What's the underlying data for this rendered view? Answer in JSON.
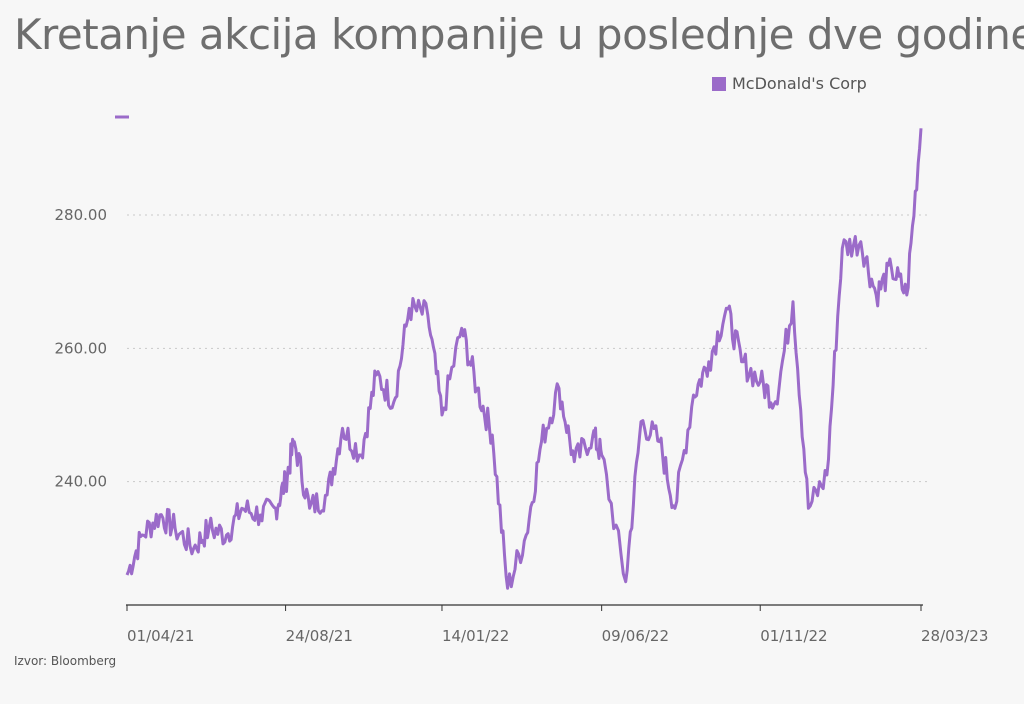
{
  "chart_data": {
    "type": "line",
    "title": "Kretanje akcija kompanije u poslednje dve godine",
    "source": "Izvor: Bloomberg",
    "series": [
      {
        "name": "McDonald's Corp",
        "color": "#9b6bc9",
        "x": [
          "01/04/21",
          "15/04/21",
          "01/05/21",
          "15/05/21",
          "01/06/21",
          "15/06/21",
          "01/07/21",
          "15/07/21",
          "01/08/21",
          "15/08/21",
          "24/08/21",
          "01/09/21",
          "15/09/21",
          "01/10/21",
          "15/10/21",
          "01/11/21",
          "15/11/21",
          "01/12/21",
          "15/12/21",
          "01/01/22",
          "14/01/22",
          "01/02/22",
          "15/02/22",
          "01/03/22",
          "15/03/22",
          "01/04/22",
          "15/04/22",
          "01/05/22",
          "15/05/22",
          "01/06/22",
          "09/06/22",
          "01/07/22",
          "15/07/22",
          "01/08/22",
          "15/08/22",
          "01/09/22",
          "15/09/22",
          "01/10/22",
          "15/10/22",
          "01/11/22",
          "15/11/22",
          "01/12/22",
          "15/12/22",
          "01/01/23",
          "15/01/23",
          "01/02/23",
          "15/02/23",
          "01/03/23",
          "15/03/23",
          "28/03/23"
        ],
        "values": [
          226,
          232,
          235,
          233,
          230,
          233,
          232,
          236,
          235,
          236,
          240,
          246,
          236,
          238,
          248,
          244,
          256,
          252,
          266,
          265,
          250,
          263,
          254,
          247,
          224,
          232,
          246,
          254,
          243,
          247,
          244,
          225,
          249,
          246,
          236,
          253,
          258,
          266,
          258,
          255,
          252,
          267,
          236,
          241,
          275,
          276,
          268,
          272,
          268,
          293
        ]
      }
    ],
    "x_ticks": [
      "01/04/21",
      "24/08/21",
      "14/01/22",
      "09/06/22",
      "01/11/22",
      "28/03/23"
    ],
    "y_ticks": [
      240,
      260,
      280
    ],
    "y_tick_labels": [
      "240.00",
      "260.00",
      "280.00"
    ],
    "ylim": [
      221.5,
      295
    ],
    "grid": "horizontal-dashed",
    "legend": "top-right"
  }
}
